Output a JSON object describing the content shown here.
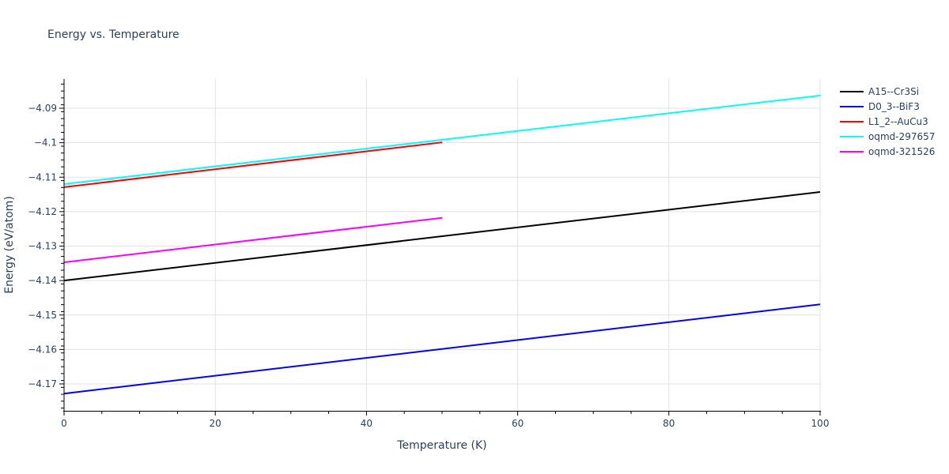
{
  "chart_data": {
    "type": "line",
    "title": "Energy vs. Temperature",
    "xlabel": "Temperature (K)",
    "ylabel": "Energy (eV/atom)",
    "xlim": [
      0,
      100
    ],
    "ylim": [
      -4.1775,
      -4.0815
    ],
    "x_ticks": [
      0,
      20,
      40,
      60,
      80,
      100
    ],
    "y_ticks": [
      -4.17,
      -4.16,
      -4.15,
      -4.14,
      -4.13,
      -4.12,
      -4.11,
      -4.1,
      -4.09
    ],
    "y_tick_labels": [
      "−4.17",
      "−4.16",
      "−4.15",
      "−4.14",
      "−4.13",
      "−4.12",
      "−4.11",
      "−4.1",
      "−4.09"
    ],
    "grid": true,
    "legend_position": "right",
    "series": [
      {
        "name": "A15--Cr3Si",
        "color": "#000000",
        "x": [
          0,
          100
        ],
        "y": [
          -4.14,
          -4.1143
        ]
      },
      {
        "name": "D0_3--BiF3",
        "color": "#0000ff",
        "x": [
          0,
          100
        ],
        "y": [
          -4.1728,
          -4.1469
        ]
      },
      {
        "name": "L1_2--AuCu3",
        "color": "#ff0000",
        "x": [
          0,
          50
        ],
        "y": [
          -4.1129,
          -4.0999
        ]
      },
      {
        "name": "oqmd-297657",
        "color": "#00ffff",
        "x": [
          0,
          100
        ],
        "y": [
          -4.112,
          -4.0863
        ]
      },
      {
        "name": "oqmd-321526",
        "color": "#ff00ff",
        "x": [
          0,
          50
        ],
        "y": [
          -4.1347,
          -4.1218
        ]
      }
    ]
  }
}
